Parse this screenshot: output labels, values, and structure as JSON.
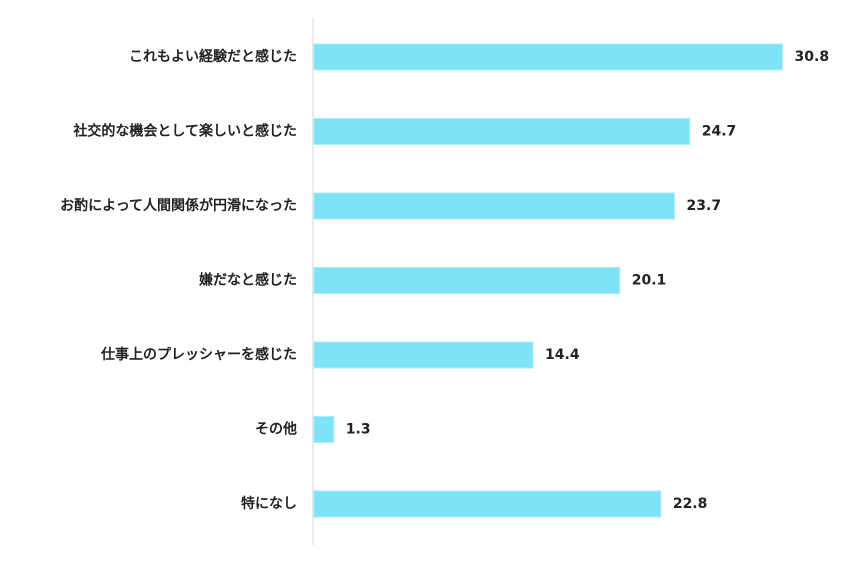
{
  "chart_data": {
    "type": "bar",
    "orientation": "horizontal",
    "categories": [
      "これもよい経験だと感じた",
      "社交的な機会として楽しいと感じた",
      "お酌によって人間関係が円滑になった",
      "嫌だなと感じた",
      "仕事上のプレッシャーを感じた",
      "その他",
      "特になし"
    ],
    "values": [
      30.8,
      24.7,
      23.7,
      20.1,
      14.4,
      1.3,
      22.8
    ],
    "title": "",
    "xlabel": "",
    "ylabel": "",
    "xlim": [
      0,
      33
    ],
    "grid": false,
    "legend": "none",
    "bar_color": "#7fe3f8",
    "bar_edge_color": "#a9eefb",
    "axis_color": "#d9d9d9"
  }
}
